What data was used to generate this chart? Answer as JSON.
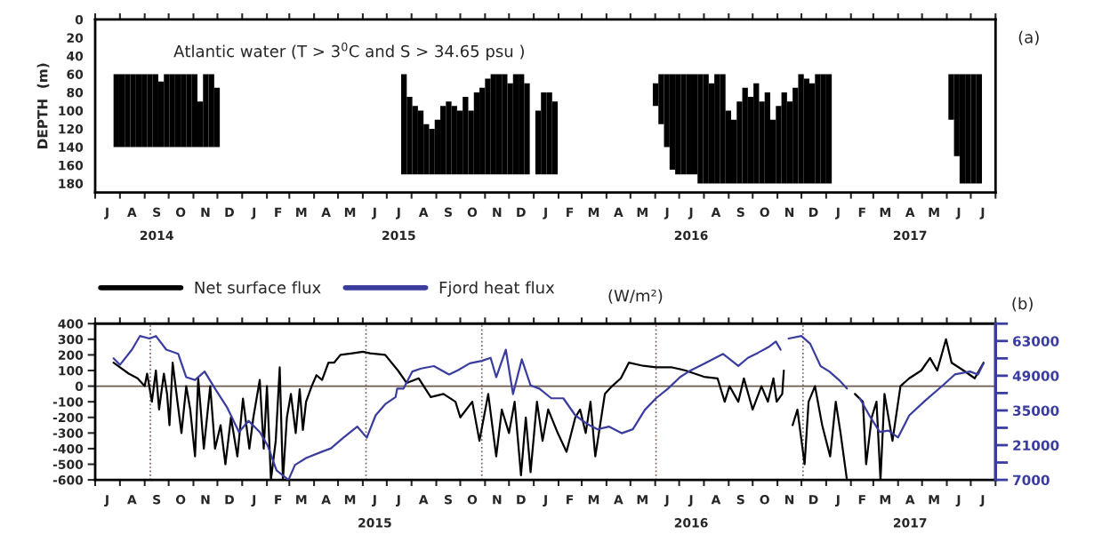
{
  "chart_data": [
    {
      "type": "bar",
      "title": "Atlantic water (T > 3$^{0}$C and S > 34.65 psu )",
      "ylabel": "DEPTH  (m)",
      "annotations": [
        "(a)"
      ],
      "x": [
        "2014-07-24",
        "2014-07-31",
        "2014-08-07",
        "2014-08-14",
        "2014-08-21",
        "2014-08-28",
        "2014-09-04",
        "2014-09-11",
        "2014-09-18",
        "2014-09-25",
        "2014-10-02",
        "2014-10-09",
        "2014-10-16",
        "2014-10-23",
        "2014-10-30",
        "2014-11-06",
        "2014-11-13",
        "2014-11-20",
        "2014-11-27",
        "2015-07-19",
        "2015-07-26",
        "2015-08-02",
        "2015-08-09",
        "2015-08-16",
        "2015-08-23",
        "2015-08-30",
        "2015-09-06",
        "2015-09-13",
        "2015-09-20",
        "2015-09-27",
        "2015-10-04",
        "2015-10-11",
        "2015-10-18",
        "2015-10-25",
        "2015-11-01",
        "2015-11-08",
        "2015-11-15",
        "2015-11-22",
        "2015-11-29",
        "2015-12-06",
        "2015-12-13",
        "2015-12-20",
        "2016-01-03",
        "2016-01-10",
        "2016-01-17",
        "2016-01-24",
        "2016-05-29",
        "2016-06-05",
        "2016-06-12",
        "2016-06-19",
        "2016-06-26",
        "2016-07-03",
        "2016-07-10",
        "2016-07-17",
        "2016-07-24",
        "2016-07-31",
        "2016-08-07",
        "2016-08-14",
        "2016-08-21",
        "2016-08-28",
        "2016-09-04",
        "2016-09-11",
        "2016-09-18",
        "2016-09-25",
        "2016-10-02",
        "2016-10-09",
        "2016-10-16",
        "2016-10-23",
        "2016-10-30",
        "2016-11-06",
        "2016-11-13",
        "2016-11-20",
        "2016-11-27",
        "2016-12-04",
        "2016-12-11",
        "2016-12-18",
        "2016-12-25",
        "2017-01-01",
        "2017-06-03",
        "2017-06-10",
        "2017-06-17",
        "2017-06-24",
        "2017-07-01",
        "2017-07-08"
      ],
      "series": [
        {
          "color": "#000000",
          "base": [
            60,
            60,
            60,
            60,
            60,
            60,
            60,
            60,
            68,
            60,
            60,
            60,
            60,
            60,
            60,
            90,
            60,
            60,
            75,
            60,
            85,
            95,
            100,
            115,
            120,
            110,
            95,
            90,
            95,
            100,
            85,
            100,
            80,
            75,
            65,
            60,
            60,
            60,
            70,
            60,
            60,
            70,
            100,
            80,
            80,
            90,
            70,
            60,
            60,
            60,
            60,
            60,
            60,
            60,
            60,
            60,
            70,
            60,
            60,
            100,
            110,
            90,
            75,
            85,
            70,
            90,
            80,
            110,
            95,
            80,
            90,
            75,
            60,
            65,
            70,
            60,
            60,
            60,
            60,
            60,
            60,
            60,
            60,
            60
          ],
          "values": [
            80,
            80,
            80,
            80,
            80,
            80,
            80,
            80,
            72,
            80,
            80,
            80,
            80,
            80,
            80,
            50,
            80,
            80,
            65,
            110,
            85,
            75,
            70,
            55,
            50,
            60,
            75,
            80,
            75,
            70,
            85,
            70,
            90,
            95,
            105,
            110,
            110,
            110,
            100,
            110,
            110,
            100,
            70,
            90,
            90,
            80,
            25,
            55,
            80,
            105,
            110,
            110,
            110,
            110,
            120,
            120,
            110,
            120,
            120,
            80,
            70,
            90,
            105,
            95,
            110,
            90,
            100,
            70,
            85,
            100,
            90,
            105,
            120,
            115,
            110,
            120,
            120,
            120,
            50,
            90,
            120,
            120,
            120,
            120
          ]
        }
      ],
      "xlim": [
        "2014-07-01",
        "2017-08-01"
      ],
      "xticks": [
        {
          "value": "2014-07-01",
          "label": null
        },
        {
          "value": "2014-08-01",
          "label": null
        },
        {
          "value": "2014-09-01",
          "label": null
        },
        {
          "value": "2014-10-01",
          "label": null
        },
        {
          "value": "2014-11-01",
          "label": null
        },
        {
          "value": "2014-12-01",
          "label": null
        },
        {
          "value": "2015-01-01",
          "label": null
        },
        {
          "value": "2015-02-01",
          "label": null
        },
        {
          "value": "2015-03-01",
          "label": null
        },
        {
          "value": "2015-04-01",
          "label": null
        },
        {
          "value": "2015-05-01",
          "label": null
        },
        {
          "value": "2015-06-01",
          "label": null
        },
        {
          "value": "2015-07-01",
          "label": null
        },
        {
          "value": "2015-08-01",
          "label": null
        },
        {
          "value": "2015-09-01",
          "label": null
        },
        {
          "value": "2015-10-01",
          "label": null
        },
        {
          "value": "2015-11-01",
          "label": null
        },
        {
          "value": "2015-12-01",
          "label": null
        },
        {
          "value": "2016-01-01",
          "label": null
        },
        {
          "value": "2016-02-01",
          "label": null
        },
        {
          "value": "2016-03-01",
          "label": null
        },
        {
          "value": "2016-04-01",
          "label": null
        },
        {
          "value": "2016-05-01",
          "label": null
        },
        {
          "value": "2016-06-01",
          "label": null
        },
        {
          "value": "2016-07-01",
          "label": null
        },
        {
          "value": "2016-08-01",
          "label": null
        },
        {
          "value": "2016-09-01",
          "label": null
        },
        {
          "value": "2016-10-01",
          "label": null
        },
        {
          "value": "2016-11-01",
          "label": null
        },
        {
          "value": "2016-12-01",
          "label": null
        },
        {
          "value": "2017-01-01",
          "label": null
        },
        {
          "value": "2017-02-01",
          "label": null
        },
        {
          "value": "2017-03-01",
          "label": null
        },
        {
          "value": "2017-04-01",
          "label": null
        },
        {
          "value": "2017-05-01",
          "label": null
        },
        {
          "value": "2017-06-01",
          "label": null
        },
        {
          "value": "2017-07-01",
          "label": null
        },
        {
          "value": "2017-08-01",
          "label": null
        },
        {
          "value": "2014-07-16",
          "label": "J"
        },
        {
          "value": "2014-08-16",
          "label": "A"
        },
        {
          "value": "2014-09-16",
          "label": "S\n2014"
        },
        {
          "value": "2014-10-16",
          "label": "O"
        },
        {
          "value": "2014-11-16",
          "label": "N"
        },
        {
          "value": "2014-12-16",
          "label": "D"
        },
        {
          "value": "2015-01-16",
          "label": "J"
        },
        {
          "value": "2015-02-15",
          "label": "F"
        },
        {
          "value": "2015-03-16",
          "label": "M"
        },
        {
          "value": "2015-04-16",
          "label": "A"
        },
        {
          "value": "2015-05-16",
          "label": "M"
        },
        {
          "value": "2015-06-16",
          "label": "J"
        },
        {
          "value": "2015-07-16",
          "label": "J\n2015"
        },
        {
          "value": "2015-08-16",
          "label": "A"
        },
        {
          "value": "2015-09-16",
          "label": "S"
        },
        {
          "value": "2015-10-16",
          "label": "O"
        },
        {
          "value": "2015-11-16",
          "label": "N"
        },
        {
          "value": "2015-12-16",
          "label": "D"
        },
        {
          "value": "2016-01-16",
          "label": "J"
        },
        {
          "value": "2016-02-15",
          "label": "F"
        },
        {
          "value": "2016-03-16",
          "label": "M"
        },
        {
          "value": "2016-04-16",
          "label": "A"
        },
        {
          "value": "2016-05-16",
          "label": "M"
        },
        {
          "value": "2016-06-16",
          "label": "J"
        },
        {
          "value": "2016-07-16",
          "label": "J\n2016"
        },
        {
          "value": "2016-08-16",
          "label": "A"
        },
        {
          "value": "2016-09-16",
          "label": "S"
        },
        {
          "value": "2016-10-16",
          "label": "O"
        },
        {
          "value": "2016-11-16",
          "label": "N"
        },
        {
          "value": "2016-12-16",
          "label": "D"
        },
        {
          "value": "2017-01-16",
          "label": "J"
        },
        {
          "value": "2017-02-15",
          "label": "F"
        },
        {
          "value": "2017-03-16",
          "label": "M"
        },
        {
          "value": "2017-04-16",
          "label": "A\n2017"
        },
        {
          "value": "2017-05-16",
          "label": "M"
        },
        {
          "value": "2017-06-16",
          "label": "J"
        },
        {
          "value": "2017-07-16",
          "label": "J"
        }
      ],
      "ylim": [
        190,
        0
      ],
      "yticks": [
        0,
        20,
        40,
        60,
        80,
        100,
        120,
        140,
        160,
        180
      ],
      "grid": false
    },
    {
      "type": "line",
      "annotations": [
        "(W/m²)",
        "(b)"
      ],
      "legend": "top left",
      "grid": false,
      "line_style": "solid",
      "series": [
        {
          "name": "Net surface flux",
          "color": "#000000",
          "x": [
            "2014-07-24",
            "2014-08-01",
            "2014-08-12",
            "2014-08-23",
            "2014-09-01",
            "2014-09-04",
            "2014-09-10",
            "2014-09-15",
            "2014-09-19",
            "2014-09-25",
            "2014-09-29",
            "2014-10-02",
            "2014-10-06",
            "2014-10-12",
            "2014-10-17",
            "2014-10-23",
            "2014-10-28",
            "2014-11-03",
            "2014-11-07",
            "2014-11-14",
            "2014-11-22",
            "2014-11-28",
            "2014-12-05",
            "2014-12-11",
            "2014-12-18",
            "2014-12-26",
            "2015-01-02",
            "2015-01-10",
            "2015-01-15",
            "2015-01-23",
            "2015-01-28",
            "2015-02-01",
            "2015-02-06",
            "2015-02-12",
            "2015-02-17",
            "2015-02-21",
            "2015-02-26",
            "2015-03-03",
            "2015-03-09",
            "2015-03-14",
            "2015-03-18",
            "2015-03-22",
            "2015-03-29",
            "2015-04-04",
            "2015-04-11",
            "2015-04-19",
            "2015-04-26",
            "2015-05-04",
            "2015-05-19",
            "2015-06-01",
            "2015-06-10",
            "2015-06-29",
            "2015-07-15",
            "2015-07-26",
            "2015-08-10",
            "2015-08-25",
            "2015-09-10",
            "2015-09-25",
            "2015-10-01",
            "2015-10-16",
            "2015-10-25",
            "2015-11-05",
            "2015-11-15",
            "2015-11-22",
            "2015-12-01",
            "2015-12-08",
            "2015-12-16",
            "2015-12-22",
            "2015-12-28",
            "2016-01-05",
            "2016-01-12",
            "2016-01-19",
            "2016-01-31",
            "2016-02-11",
            "2016-02-22",
            "2016-02-28",
            "2016-03-06",
            "2016-03-12",
            "2016-03-18",
            "2016-03-30",
            "2016-04-08",
            "2016-04-19",
            "2016-04-29",
            "2016-05-17",
            "2016-06-02",
            "2016-06-22",
            "2016-07-09",
            "2016-08-01",
            "2016-08-18",
            "2016-08-27",
            "2016-09-02",
            "2016-09-13",
            "2016-09-20",
            "2016-10-01",
            "2016-10-12",
            "2016-10-20",
            "2016-10-27",
            "2016-10-31",
            "2016-11-07",
            "2016-11-09",
            "2016-11-14",
            "2016-11-20",
            "2016-11-26",
            "2016-12-05",
            "2016-12-10",
            "2016-12-18",
            "2016-12-27",
            "2017-01-06",
            "2017-01-13",
            "2017-01-19",
            "2017-01-27",
            "2017-02-01",
            "2017-02-06",
            "2017-02-16",
            "2017-02-20",
            "2017-02-27",
            "2017-03-05",
            "2017-03-10",
            "2017-03-15",
            "2017-03-25",
            "2017-04-04",
            "2017-04-15",
            "2017-04-30",
            "2017-05-11",
            "2017-05-20",
            "2017-05-31",
            "2017-06-07",
            "2017-06-22",
            "2017-07-06",
            "2017-07-17"
          ],
          "values": [
            150,
            120,
            80,
            50,
            0,
            80,
            -100,
            100,
            -150,
            80,
            -50,
            -250,
            150,
            -100,
            -300,
            0,
            -150,
            -450,
            50,
            -400,
            0,
            -400,
            -250,
            -500,
            -200,
            -450,
            -80,
            -400,
            -200,
            40,
            -400,
            0,
            -600,
            -350,
            120,
            -600,
            -200,
            -50,
            -300,
            -20,
            -280,
            -100,
            0,
            70,
            40,
            150,
            150,
            200,
            210,
            220,
            210,
            200,
            100,
            20,
            50,
            -70,
            -50,
            -100,
            -200,
            -100,
            -350,
            -50,
            -450,
            -150,
            -300,
            -100,
            -570,
            -200,
            -550,
            -100,
            -350,
            -150,
            -300,
            -420,
            -200,
            -150,
            -300,
            -100,
            -450,
            -50,
            0,
            50,
            150,
            130,
            120,
            120,
            100,
            60,
            50,
            -100,
            0,
            -100,
            50,
            -150,
            0,
            -100,
            50,
            -100,
            -50,
            100,
            null,
            -250,
            -150,
            -500,
            -100,
            0,
            -250,
            -450,
            -100,
            -300,
            -600,
            null,
            -50,
            -100,
            -500,
            -200,
            -100,
            -600,
            -50,
            -350,
            0,
            50,
            100,
            180,
            100,
            300,
            150,
            100,
            50,
            150
          ]
        },
        {
          "name": "Fjord heat flux",
          "color": "#3a3d9e",
          "axis": "y2",
          "x": [
            "2014-07-24",
            "2014-08-01",
            "2014-08-16",
            "2014-08-26",
            "2014-09-07",
            "2014-09-15",
            "2014-09-28",
            "2014-10-13",
            "2014-10-23",
            "2014-11-03",
            "2014-11-15",
            "2014-11-28",
            "2014-12-13",
            "2014-12-28",
            "2015-01-09",
            "2015-01-23",
            "2015-02-02",
            "2015-02-13",
            "2015-02-28",
            "2015-03-08",
            "2015-03-22",
            "2015-04-08",
            "2015-04-22",
            "2015-05-08",
            "2015-05-25",
            "2015-06-06",
            "2015-06-17",
            "2015-06-29",
            "2015-07-12",
            "2015-07-14",
            "2015-07-22",
            "2015-08-02",
            "2015-08-13",
            "2015-08-29",
            "2015-09-17",
            "2015-09-28",
            "2015-10-13",
            "2015-10-28",
            "2015-11-08",
            "2015-11-15",
            "2015-11-27",
            "2015-12-06",
            "2015-12-17",
            "2015-12-28",
            "2016-01-08",
            "2016-01-23",
            "2016-02-07",
            "2016-02-22",
            "2016-03-07",
            "2016-03-21",
            "2016-04-04",
            "2016-04-20",
            "2016-05-04",
            "2016-05-19",
            "2016-06-02",
            "2016-06-17",
            "2016-07-02",
            "2016-07-13",
            "2016-08-02",
            "2016-08-25",
            "2016-09-05",
            "2016-09-13",
            "2016-09-25",
            "2016-10-08",
            "2016-10-22",
            "2016-10-30",
            "2016-11-05",
            "2016-11-10",
            "2016-11-15",
            "2016-12-01",
            "2016-12-12",
            "2016-12-25",
            "2017-01-05",
            "2017-01-17",
            "2017-01-27",
            "2017-02-01",
            "2017-02-12",
            "2017-02-24",
            "2017-03-09",
            "2017-03-20",
            "2017-04-01",
            "2017-04-15",
            "2017-05-04",
            "2017-05-27",
            "2017-06-11",
            "2017-06-30",
            "2017-07-10",
            "2017-07-17"
          ],
          "values": [
            56000,
            53400,
            59500,
            65000,
            64000,
            65000,
            59500,
            57800,
            48400,
            47300,
            50700,
            43800,
            36300,
            26300,
            30800,
            26300,
            20800,
            10800,
            7000,
            13000,
            15800,
            18000,
            19700,
            24100,
            28500,
            24000,
            33000,
            37500,
            40400,
            43800,
            43800,
            50700,
            51900,
            52900,
            49500,
            51200,
            54000,
            55000,
            56200,
            48400,
            59500,
            41600,
            55600,
            45100,
            43800,
            39900,
            39900,
            33000,
            29700,
            27400,
            28500,
            25800,
            27400,
            35200,
            39900,
            43800,
            48400,
            50700,
            54000,
            57800,
            55000,
            52900,
            56200,
            58300,
            60800,
            62800,
            59500,
            null,
            64000,
            65000,
            61900,
            52900,
            50700,
            47300,
            43800,
            null,
            39900,
            33000,
            26300,
            26900,
            24100,
            33000,
            38700,
            45100,
            49500,
            50700,
            49500,
            54000
          ]
        }
      ],
      "xlim": [
        "2014-07-01",
        "2017-08-01"
      ],
      "xticks": [
        {
          "value": "2014-07-01",
          "label": null
        },
        {
          "value": "2014-08-01",
          "label": null
        },
        {
          "value": "2014-09-01",
          "label": null
        },
        {
          "value": "2014-10-01",
          "label": null
        },
        {
          "value": "2014-11-01",
          "label": null
        },
        {
          "value": "2014-12-01",
          "label": null
        },
        {
          "value": "2015-01-01",
          "label": null
        },
        {
          "value": "2015-02-01",
          "label": null
        },
        {
          "value": "2015-03-01",
          "label": null
        },
        {
          "value": "2015-04-01",
          "label": null
        },
        {
          "value": "2015-05-01",
          "label": null
        },
        {
          "value": "2015-06-01",
          "label": null
        },
        {
          "value": "2015-07-01",
          "label": null
        },
        {
          "value": "2015-08-01",
          "label": null
        },
        {
          "value": "2015-09-01",
          "label": null
        },
        {
          "value": "2015-10-01",
          "label": null
        },
        {
          "value": "2015-11-01",
          "label": null
        },
        {
          "value": "2015-12-01",
          "label": null
        },
        {
          "value": "2016-01-01",
          "label": null
        },
        {
          "value": "2016-02-01",
          "label": null
        },
        {
          "value": "2016-03-01",
          "label": null
        },
        {
          "value": "2016-04-01",
          "label": null
        },
        {
          "value": "2016-05-01",
          "label": null
        },
        {
          "value": "2016-06-01",
          "label": null
        },
        {
          "value": "2016-07-01",
          "label": null
        },
        {
          "value": "2016-08-01",
          "label": null
        },
        {
          "value": "2016-09-01",
          "label": null
        },
        {
          "value": "2016-10-01",
          "label": null
        },
        {
          "value": "2016-11-01",
          "label": null
        },
        {
          "value": "2016-12-01",
          "label": null
        },
        {
          "value": "2017-01-01",
          "label": null
        },
        {
          "value": "2017-02-01",
          "label": null
        },
        {
          "value": "2017-03-01",
          "label": null
        },
        {
          "value": "2017-04-01",
          "label": null
        },
        {
          "value": "2017-05-01",
          "label": null
        },
        {
          "value": "2017-06-01",
          "label": null
        },
        {
          "value": "2017-07-01",
          "label": null
        },
        {
          "value": "2017-08-01",
          "label": null
        },
        {
          "value": "2014-07-16",
          "label": "J"
        },
        {
          "value": "2014-08-16",
          "label": "A"
        },
        {
          "value": "2014-09-16",
          "label": "S"
        },
        {
          "value": "2014-10-16",
          "label": "O"
        },
        {
          "value": "2014-11-16",
          "label": "N"
        },
        {
          "value": "2014-12-16",
          "label": "D"
        },
        {
          "value": "2015-01-16",
          "label": "J"
        },
        {
          "value": "2015-02-15",
          "label": "F"
        },
        {
          "value": "2015-03-16",
          "label": "M"
        },
        {
          "value": "2015-04-16",
          "label": "A"
        },
        {
          "value": "2015-05-16",
          "label": "M"
        },
        {
          "value": "2015-06-16",
          "label": "J\n2015"
        },
        {
          "value": "2015-07-16",
          "label": "J"
        },
        {
          "value": "2015-08-16",
          "label": "A"
        },
        {
          "value": "2015-09-16",
          "label": "S"
        },
        {
          "value": "2015-10-16",
          "label": "O"
        },
        {
          "value": "2015-11-16",
          "label": "N"
        },
        {
          "value": "2015-12-16",
          "label": "D"
        },
        {
          "value": "2016-01-16",
          "label": "J"
        },
        {
          "value": "2016-02-15",
          "label": "F"
        },
        {
          "value": "2016-03-16",
          "label": "M"
        },
        {
          "value": "2016-04-16",
          "label": "A"
        },
        {
          "value": "2016-05-16",
          "label": "M"
        },
        {
          "value": "2016-06-16",
          "label": "J"
        },
        {
          "value": "2016-07-16",
          "label": "J\n2016"
        },
        {
          "value": "2016-08-16",
          "label": "A"
        },
        {
          "value": "2016-09-16",
          "label": "S"
        },
        {
          "value": "2016-10-16",
          "label": "O"
        },
        {
          "value": "2016-11-16",
          "label": "N"
        },
        {
          "value": "2016-12-16",
          "label": "D"
        },
        {
          "value": "2017-01-16",
          "label": "J"
        },
        {
          "value": "2017-02-15",
          "label": "F"
        },
        {
          "value": "2017-03-16",
          "label": "M"
        },
        {
          "value": "2017-04-16",
          "label": "A\n2017"
        },
        {
          "value": "2017-05-16",
          "label": "M"
        },
        {
          "value": "2017-06-16",
          "label": "J"
        },
        {
          "value": "2017-07-16",
          "label": "J"
        }
      ],
      "ylim": [
        -600,
        400
      ],
      "yticks": [
        -600,
        -500,
        -400,
        -300,
        -200,
        -100,
        0,
        100,
        200,
        300,
        400
      ],
      "y2lim": [
        7000,
        70000
      ],
      "y2ticks": [
        7000,
        {
          "value": 14000,
          "label": null
        },
        21000,
        {
          "value": 28000,
          "label": null
        },
        35000,
        {
          "value": 42000,
          "label": null
        },
        49000,
        {
          "value": 56000,
          "label": null
        },
        63000,
        {
          "value": 70000,
          "label": null
        }
      ],
      "ref_lines": [
        {
          "axis": "y",
          "value": 0,
          "color": "#6b5b4f",
          "line_style": "solid"
        },
        {
          "axis": "x",
          "value": "2014-09-08",
          "color": "#7a5a5a",
          "line_style": "dotted"
        },
        {
          "axis": "x",
          "value": "2015-06-05",
          "color": "#7a5a5a",
          "line_style": "dotted"
        },
        {
          "axis": "x",
          "value": "2015-10-28",
          "color": "#7a5a5a",
          "line_style": "dotted"
        },
        {
          "axis": "x",
          "value": "2016-06-02",
          "color": "#7a5a5a",
          "line_style": "dotted"
        },
        {
          "axis": "x",
          "value": "2016-12-03",
          "color": "#7a5a5a",
          "line_style": "dotted"
        }
      ]
    }
  ]
}
